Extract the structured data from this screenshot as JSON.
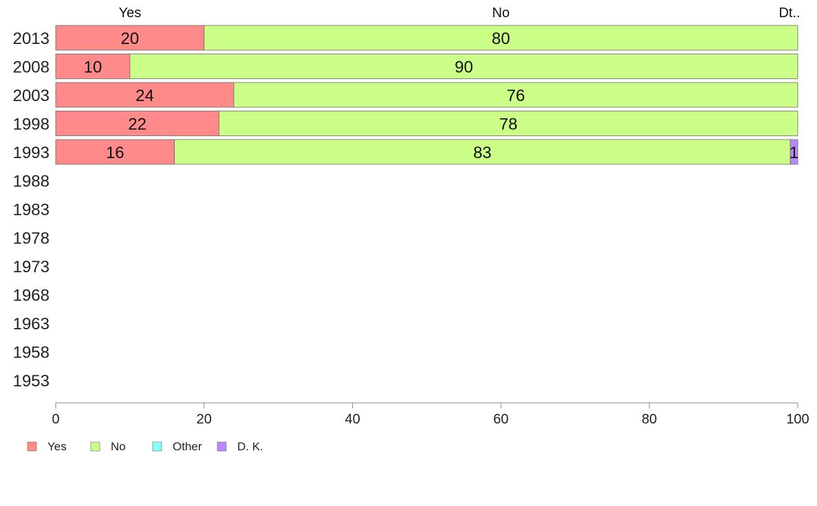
{
  "chart_data": {
    "type": "bar",
    "orientation": "horizontal",
    "stacked": true,
    "categories": [
      "2013",
      "2008",
      "2003",
      "1998",
      "1993",
      "1988",
      "1983",
      "1978",
      "1973",
      "1968",
      "1963",
      "1958",
      "1953"
    ],
    "series": [
      {
        "name": "Yes",
        "color": "#ff8a8a",
        "values": [
          20,
          10,
          24,
          22,
          16,
          null,
          null,
          null,
          null,
          null,
          null,
          null,
          null
        ]
      },
      {
        "name": "No",
        "color": "#ccff88",
        "values": [
          80,
          90,
          76,
          78,
          83,
          null,
          null,
          null,
          null,
          null,
          null,
          null,
          null
        ]
      },
      {
        "name": "Other",
        "color": "#88ffff",
        "values": [
          0,
          0,
          0,
          0,
          0,
          null,
          null,
          null,
          null,
          null,
          null,
          null,
          null
        ]
      },
      {
        "name": "D. K.",
        "color": "#bb88ff",
        "values": [
          0,
          0,
          0,
          0,
          1,
          null,
          null,
          null,
          null,
          null,
          null,
          null,
          null
        ]
      }
    ],
    "top_labels": [
      "Yes",
      "No",
      "Dt.."
    ],
    "xlim": [
      0,
      100
    ],
    "xticks": [
      0,
      20,
      40,
      60,
      80,
      100
    ],
    "legend_position": "bottom-left",
    "grid": false,
    "title": "",
    "xlabel": "",
    "ylabel": ""
  }
}
